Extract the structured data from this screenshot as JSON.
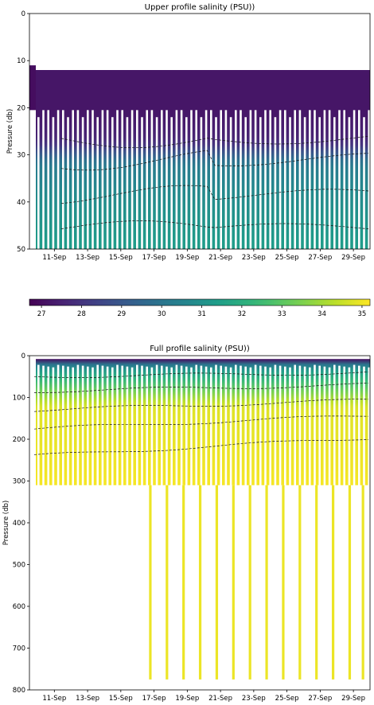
{
  "chart_data": [
    {
      "type": "heatmap",
      "title": "Upper profile salinity (PSU))",
      "ylabel": "Pressure (db)",
      "xlabel": "",
      "x_tick_labels": [
        "11-Sep",
        "13-Sep",
        "15-Sep",
        "17-Sep",
        "19-Sep",
        "21-Sep",
        "23-Sep",
        "25-Sep",
        "27-Sep",
        "29-Sep"
      ],
      "y_ticks": [
        0,
        10,
        20,
        30,
        40,
        50
      ],
      "ylim": [
        50,
        0
      ],
      "y_inverted": true,
      "x_day_range": [
        9.5,
        30.0
      ],
      "profile_top_db": 12,
      "upper_mixed_layer_bottom_db": 20.5,
      "colormap": "viridis",
      "contours": "dashed black lines",
      "salinity_by_depth_db": {
        "depth": [
          12,
          20,
          26,
          32,
          40,
          50
        ],
        "salinity": [
          27.2,
          27.6,
          30.2,
          30.6,
          31.0,
          31.4
        ]
      }
    },
    {
      "type": "colorbar",
      "ticks": [
        27,
        28,
        29,
        30,
        31,
        32,
        33,
        34,
        35
      ],
      "range": [
        26.7,
        35.2
      ],
      "colormap": "viridis"
    },
    {
      "type": "heatmap",
      "title": "Full profile salinity (PSU))",
      "ylabel": "Pressure (db)",
      "xlabel": "",
      "x_tick_labels": [
        "11-Sep",
        "13-Sep",
        "15-Sep",
        "17-Sep",
        "19-Sep",
        "21-Sep",
        "23-Sep",
        "25-Sep",
        "27-Sep",
        "29-Sep"
      ],
      "y_ticks": [
        0,
        100,
        200,
        300,
        400,
        500,
        600,
        700,
        800
      ],
      "ylim": [
        800,
        0
      ],
      "y_inverted": true,
      "x_day_range": [
        9.5,
        30.0
      ],
      "shallow_cast_bottom_db": 310,
      "deep_cast_bottom_db": 775,
      "deep_cast_days": [
        16.7,
        17.7,
        18.7,
        19.7,
        20.7,
        21.7,
        22.7,
        23.7,
        24.7,
        25.7,
        26.7,
        27.7,
        28.7,
        29.5
      ],
      "colormap": "viridis",
      "contours": "dashed black lines",
      "salinity_by_depth_db": {
        "depth": [
          0,
          15,
          40,
          80,
          130,
          200,
          260,
          310,
          800
        ],
        "salinity": [
          27.0,
          28.6,
          30.4,
          31.5,
          32.3,
          33.3,
          34.2,
          34.8,
          35.1
        ]
      }
    }
  ]
}
